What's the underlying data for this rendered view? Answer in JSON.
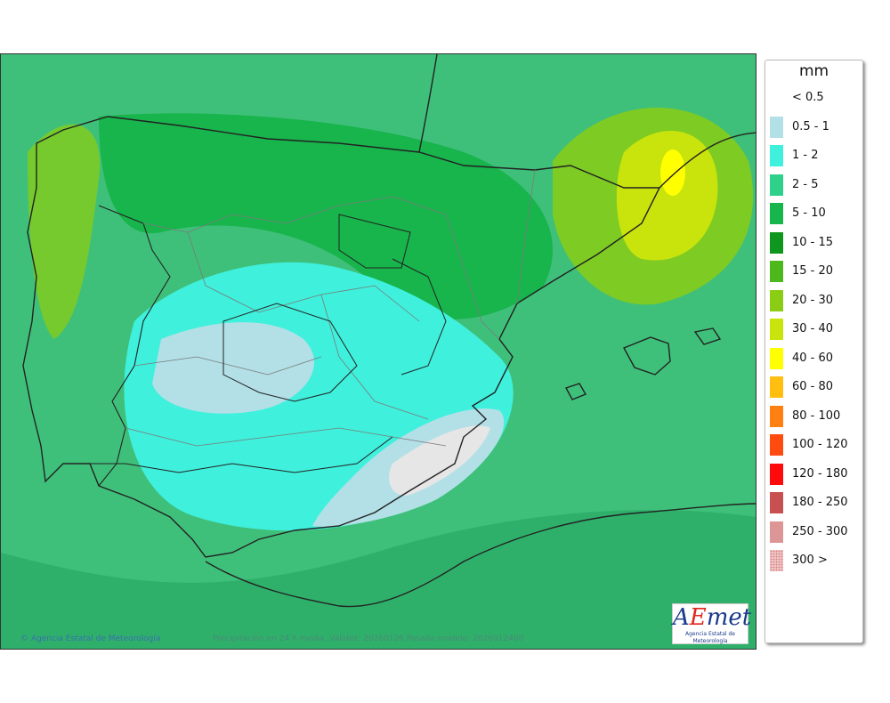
{
  "legend": {
    "unit": "mm",
    "items": [
      {
        "label": "< 0.5",
        "color": "#ffffff"
      },
      {
        "label": "0.5 - 1",
        "color": "#b2e0e6"
      },
      {
        "label": "1 - 2",
        "color": "#3ff0dc"
      },
      {
        "label": "2 - 5",
        "color": "#2fd18a"
      },
      {
        "label": "5 - 10",
        "color": "#18b44c"
      },
      {
        "label": "10 - 15",
        "color": "#0e961e"
      },
      {
        "label": "15 - 20",
        "color": "#4cb81c"
      },
      {
        "label": "20 - 30",
        "color": "#8acd14"
      },
      {
        "label": "30 - 40",
        "color": "#c8e40c"
      },
      {
        "label": "40 - 60",
        "color": "#ffff00"
      },
      {
        "label": "60 - 80",
        "color": "#ffbe10"
      },
      {
        "label": "80 - 100",
        "color": "#ff8010"
      },
      {
        "label": "100 - 120",
        "color": "#ff4b10"
      },
      {
        "label": "120 - 180",
        "color": "#ff0a0a"
      },
      {
        "label": "180 - 250",
        "color": "#c85050"
      },
      {
        "label": "250 - 300",
        "color": "#dc9696"
      },
      {
        "label": "300 >",
        "color": "#f0c8c8"
      }
    ]
  },
  "footer": {
    "credit": "© Agencia Estatal de Meteorología",
    "model_info": "Precipitación en 24 h media. Validez: 20260126 Pasada modelo: 2026012400"
  },
  "logo": {
    "text": "AEmet",
    "subtitle": "Agencia Estatal de Meteorología"
  },
  "colors": {
    "sea_base": "#3fc07a",
    "land_outline": "#222222",
    "region_border": "#7a7a7a"
  }
}
